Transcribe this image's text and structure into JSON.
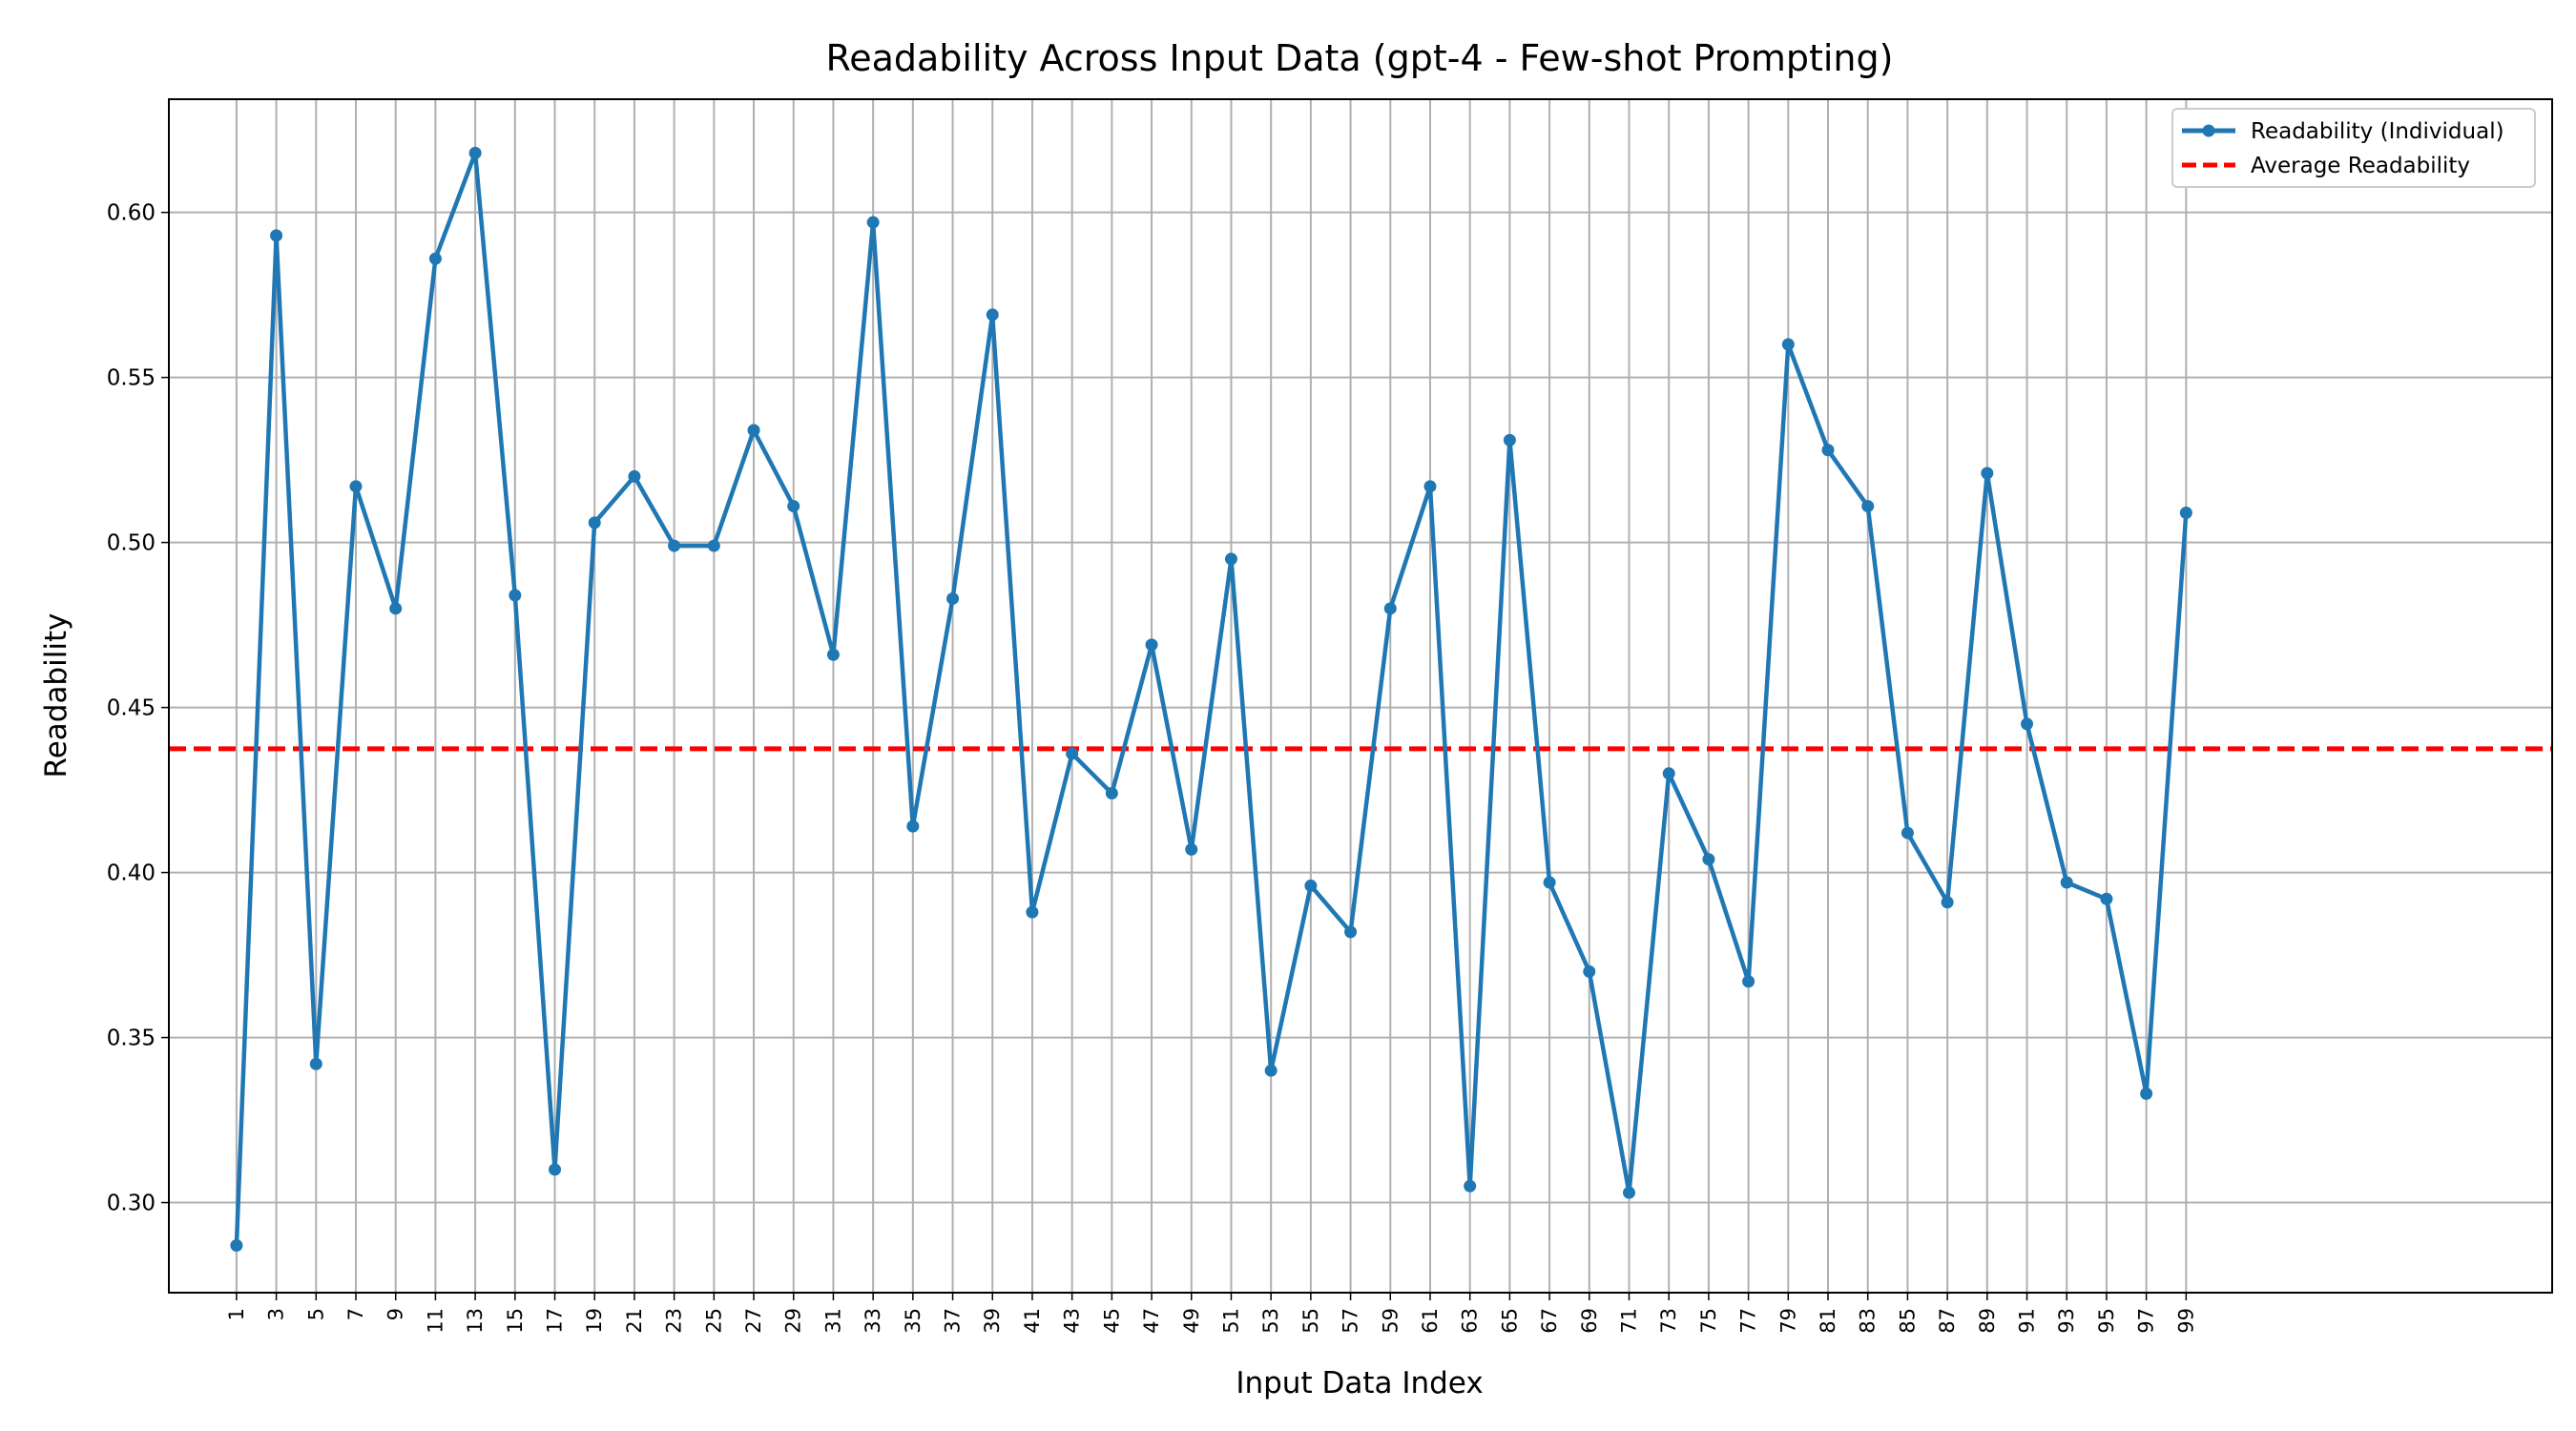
{
  "chart_data": {
    "type": "line",
    "title": "Readability Across Input Data (gpt-4 - Few-shot Prompting)",
    "xlabel": "Input Data Index",
    "ylabel": "Readability",
    "xlim": [
      -1.7,
      58.2
    ],
    "ylim": [
      0.2727,
      0.6343
    ],
    "x_tick_labels": [
      "1",
      "3",
      "5",
      "7",
      "9",
      "11",
      "13",
      "15",
      "17",
      "19",
      "21",
      "23",
      "25",
      "27",
      "29",
      "31",
      "33",
      "35",
      "37",
      "39",
      "41",
      "43",
      "45",
      "47",
      "49",
      "51",
      "53",
      "55",
      "57",
      "59",
      "61",
      "63",
      "65",
      "67",
      "69",
      "71",
      "73",
      "75",
      "77",
      "79",
      "81",
      "83",
      "85",
      "87",
      "89",
      "91",
      "93",
      "95",
      "97",
      "99"
    ],
    "y_ticks": [
      0.3,
      0.35,
      0.4,
      0.45,
      0.5,
      0.55,
      0.6
    ],
    "y_tick_labels": [
      "0.30",
      "0.35",
      "0.40",
      "0.45",
      "0.50",
      "0.55",
      "0.60"
    ],
    "grid": true,
    "legend_position": "top-right",
    "series": [
      {
        "name": "Readability (Individual)",
        "color": "#1f77b4",
        "style": "solid-line-with-circle-markers",
        "values": [
          0.287,
          0.593,
          0.342,
          0.517,
          0.48,
          0.586,
          0.618,
          0.484,
          0.31,
          0.506,
          0.52,
          0.499,
          0.499,
          0.534,
          0.511,
          0.466,
          0.597,
          0.414,
          0.483,
          0.569,
          0.388,
          0.436,
          0.424,
          0.469,
          0.407,
          0.495,
          0.34,
          0.396,
          0.382,
          0.48,
          0.517,
          0.305,
          0.531,
          0.397,
          0.37,
          0.303,
          0.43,
          0.404,
          0.367,
          0.56,
          0.528,
          0.511,
          0.412,
          0.391,
          0.521,
          0.445,
          0.397,
          0.392,
          0.333,
          0.509
        ]
      },
      {
        "name": "Average Readability",
        "color": "#ff0000",
        "style": "dashed-line",
        "value": 0.4375
      }
    ]
  }
}
